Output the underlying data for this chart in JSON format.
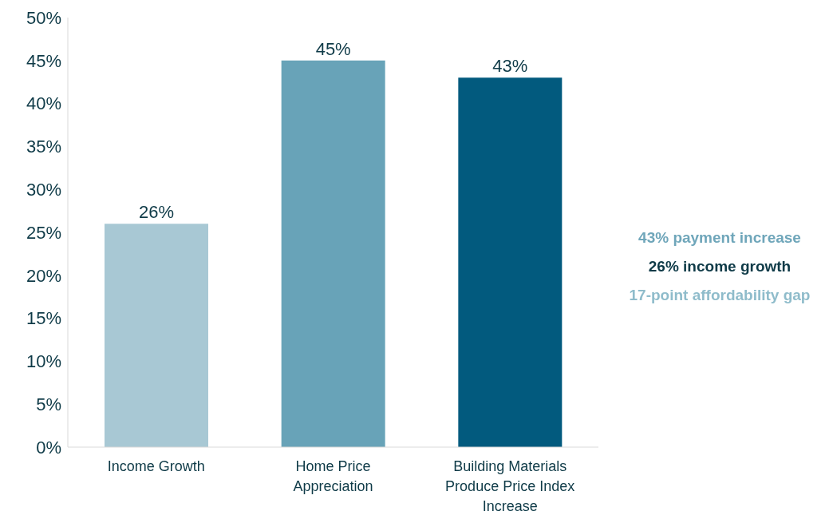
{
  "chart_data": {
    "type": "bar",
    "categories": [
      "Income Growth",
      "Home Price Appreciation",
      "Building Materials Produce Price Index Increase"
    ],
    "values": [
      26,
      45,
      43
    ],
    "colors": [
      "#a8c8d4",
      "#68a3b8",
      "#025a7e"
    ],
    "value_labels": [
      "26%",
      "45%",
      "43%"
    ],
    "ylim": [
      0,
      50
    ],
    "yticks": [
      {
        "value": 0,
        "label": "0%"
      },
      {
        "value": 5,
        "label": "5%"
      },
      {
        "value": 10,
        "label": "10%"
      },
      {
        "value": 15,
        "label": "15%"
      },
      {
        "value": 20,
        "label": "20%"
      },
      {
        "value": 25,
        "label": "25%"
      },
      {
        "value": 30,
        "label": "30%"
      },
      {
        "value": 35,
        "label": "35%"
      },
      {
        "value": 40,
        "label": "40%"
      },
      {
        "value": 45,
        "label": "45%"
      },
      {
        "value": 50,
        "label": "50%"
      }
    ],
    "grid": false,
    "annotations": [
      "43% payment increase",
      "26% income growth",
      "17-point affordability gap"
    ]
  }
}
